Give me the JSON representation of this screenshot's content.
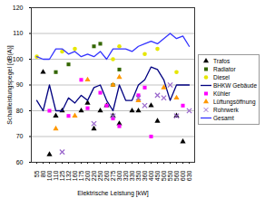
{
  "chart_data": {
    "type": "scatter",
    "x_label": "Elektrische Leistung [kW]",
    "y_label": "Schallleistungspegel [dB(A)]",
    "categories": [
      "55",
      "80",
      "100",
      "110",
      "125",
      "132",
      "160",
      "175",
      "200",
      "220",
      "250",
      "260",
      "275",
      "300",
      "320",
      "330",
      "350",
      "360",
      "400",
      "450",
      "500",
      "550",
      "560",
      "600",
      "630"
    ],
    "ylim": [
      60,
      120
    ],
    "yticks": [
      60,
      70,
      80,
      90,
      100,
      110,
      120
    ],
    "grid": true,
    "legend": "right",
    "series": [
      {
        "name": "Trafos",
        "type": "scatter",
        "marker": "triangle",
        "color": "#000000",
        "values": [
          null,
          95,
          63,
          78,
          80,
          null,
          null,
          80,
          83,
          73,
          80,
          82,
          78,
          75,
          null,
          80,
          80,
          null,
          82,
          76,
          null,
          null,
          78,
          68,
          null
        ]
      },
      {
        "name": "Radiator",
        "type": "scatter",
        "marker": "square",
        "color": "#336600",
        "values": [
          null,
          null,
          null,
          95,
          null,
          98,
          null,
          null,
          null,
          105,
          106,
          null,
          90,
          96,
          null,
          null,
          null,
          null,
          null,
          null,
          null,
          null,
          null,
          null,
          null
        ]
      },
      {
        "name": "Diesel",
        "type": "scatter",
        "marker": "circle",
        "color": "#e6e600",
        "values": [
          101,
          null,
          null,
          null,
          103,
          null,
          104,
          null,
          null,
          null,
          null,
          null,
          100,
          105,
          null,
          null,
          null,
          102,
          null,
          104,
          null,
          null,
          95,
          null,
          null
        ]
      },
      {
        "name": "BHKW Gebäude",
        "type": "line",
        "line_style": "solid",
        "marker": "none",
        "color": "#000080",
        "values": [
          84,
          80,
          90,
          80,
          80,
          85,
          83,
          86,
          84,
          89,
          90,
          84,
          80,
          90,
          84,
          84,
          90,
          92,
          97,
          96,
          92,
          84,
          90,
          90,
          90
        ]
      },
      {
        "name": "Kühler",
        "type": "scatter",
        "marker": "square",
        "color": "#ff00ff",
        "values": [
          null,
          null,
          80,
          null,
          null,
          78,
          null,
          92,
          81,
          null,
          87,
          82,
          77,
          74,
          null,
          null,
          86,
          89,
          70,
          null,
          null,
          null,
          null,
          82,
          null
        ]
      },
      {
        "name": "Lüftungsöffnung",
        "type": "scatter",
        "marker": "triangle",
        "color": "#ff9900",
        "values": [
          null,
          null,
          null,
          73,
          null,
          null,
          78,
          null,
          92,
          null,
          null,
          null,
          90,
          93,
          null,
          null,
          84,
          null,
          null,
          null,
          89,
          null,
          85,
          null,
          null
        ]
      },
      {
        "name": "Rohrwerk",
        "type": "scatter",
        "marker": "cross",
        "color": "#9966cc",
        "values": [
          null,
          null,
          null,
          null,
          64,
          null,
          null,
          null,
          null,
          75,
          null,
          null,
          78,
          null,
          null,
          null,
          85,
          82,
          null,
          86,
          85,
          90,
          78,
          null,
          80
        ]
      },
      {
        "name": "Gesamt",
        "type": "line",
        "line_style": "solid",
        "marker": "none",
        "color": "#3333ff",
        "values": [
          101,
          100,
          100,
          104,
          104,
          102,
          103,
          101,
          102,
          101,
          103,
          100,
          104,
          104,
          104,
          103,
          105,
          106,
          107,
          106,
          108,
          110,
          108,
          109,
          105
        ]
      }
    ]
  }
}
